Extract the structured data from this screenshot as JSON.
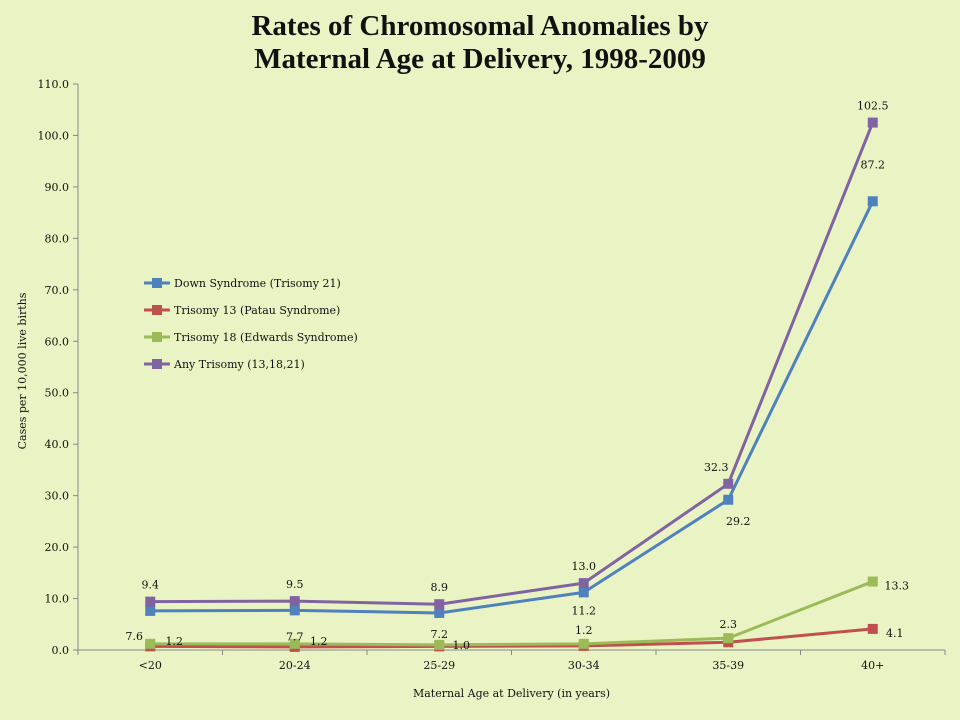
{
  "chart_data": {
    "type": "line",
    "title_lines": [
      "Rates of  Chromosomal Anomalies by",
      "Maternal Age at Delivery, 1998-2009"
    ],
    "xlabel": "Maternal Age at Delivery (in years)",
    "ylabel": "Cases per 10,000 live births",
    "categories": [
      "<20",
      "20-24",
      "25-29",
      "30-34",
      "35-39",
      "40+"
    ],
    "ylim": [
      0,
      110
    ],
    "yticks": [
      "0.0",
      "10.0",
      "20.0",
      "30.0",
      "40.0",
      "50.0",
      "60.0",
      "70.0",
      "80.0",
      "90.0",
      "100.0",
      "110.0"
    ],
    "grid": false,
    "legend_placement": "left",
    "series": [
      {
        "name": "Down Syndrome (Trisomy 21)",
        "color": "#4f81bd",
        "values": [
          7.6,
          7.7,
          7.2,
          11.2,
          29.2,
          87.2
        ],
        "labels": [
          "7.6",
          "7.7",
          "7.2",
          "11.2",
          "29.2",
          "87.2"
        ]
      },
      {
        "name": "Trisomy 13 (Patau Syndrome)",
        "color": "#c0504d",
        "values": [
          0.7,
          0.6,
          0.7,
          0.8,
          1.5,
          4.1
        ],
        "labels": [
          "",
          "",
          "",
          "",
          "",
          "4.1"
        ]
      },
      {
        "name": "Trisomy 18 (Edwards Syndrome)",
        "color": "#9bbb59",
        "values": [
          1.2,
          1.2,
          1.0,
          1.2,
          2.3,
          13.3
        ],
        "labels": [
          "1.2",
          "1.2",
          "1.0",
          "1.2",
          "2.3",
          "13.3"
        ]
      },
      {
        "name": "Any Trisomy (13,18,21)",
        "color": "#8064a2",
        "values": [
          9.4,
          9.5,
          8.9,
          13.0,
          32.3,
          102.5
        ],
        "labels": [
          "9.4",
          "9.5",
          "8.9",
          "13.0",
          "32.3",
          "102.5"
        ]
      }
    ]
  }
}
